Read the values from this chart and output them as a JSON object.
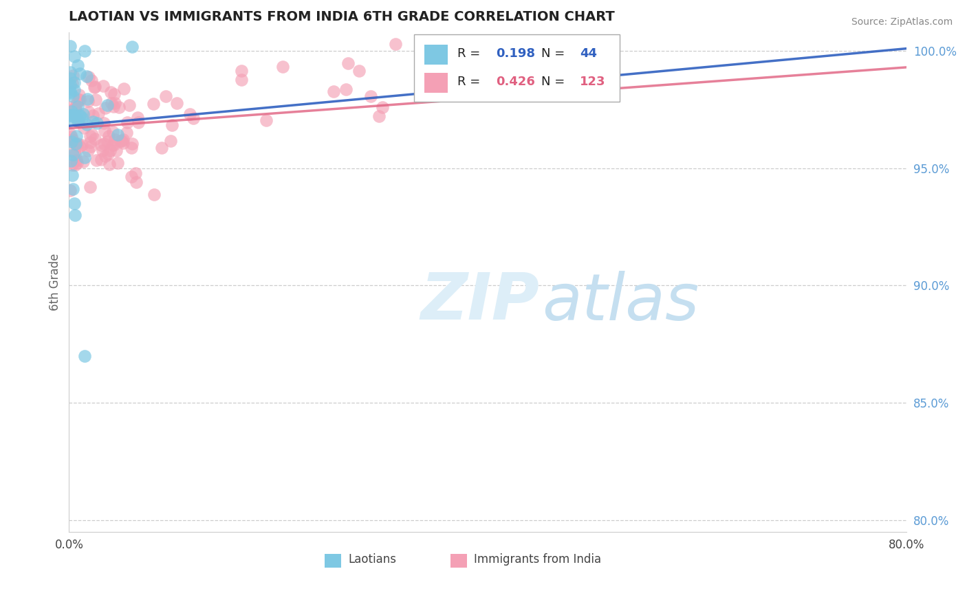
{
  "title": "LAOTIAN VS IMMIGRANTS FROM INDIA 6TH GRADE CORRELATION CHART",
  "source": "Source: ZipAtlas.com",
  "ylabel": "6th Grade",
  "xlim": [
    0.0,
    0.8
  ],
  "ylim": [
    0.795,
    1.008
  ],
  "xtick_vals": [
    0.0,
    0.2,
    0.4,
    0.6,
    0.8
  ],
  "xtick_labels": [
    "0.0%",
    "",
    "",
    "",
    "80.0%"
  ],
  "ytick_vals": [
    0.8,
    0.85,
    0.9,
    0.95,
    1.0
  ],
  "ytick_labels": [
    "80.0%",
    "85.0%",
    "90.0%",
    "95.0%",
    "100.0%"
  ],
  "blue_color": "#7ec8e3",
  "pink_color": "#f4a0b5",
  "blue_line_color": "#3060c0",
  "pink_line_color": "#e06080",
  "legend_blue_color": "#3060c0",
  "legend_pink_color": "#e06080",
  "background_color": "#ffffff",
  "grid_color": "#c8c8c8",
  "blue_R": 0.198,
  "blue_N": 44,
  "pink_R": 0.426,
  "pink_N": 123,
  "title_fontsize": 14,
  "axis_label_fontsize": 12,
  "tick_fontsize": 12,
  "legend_fontsize": 13
}
